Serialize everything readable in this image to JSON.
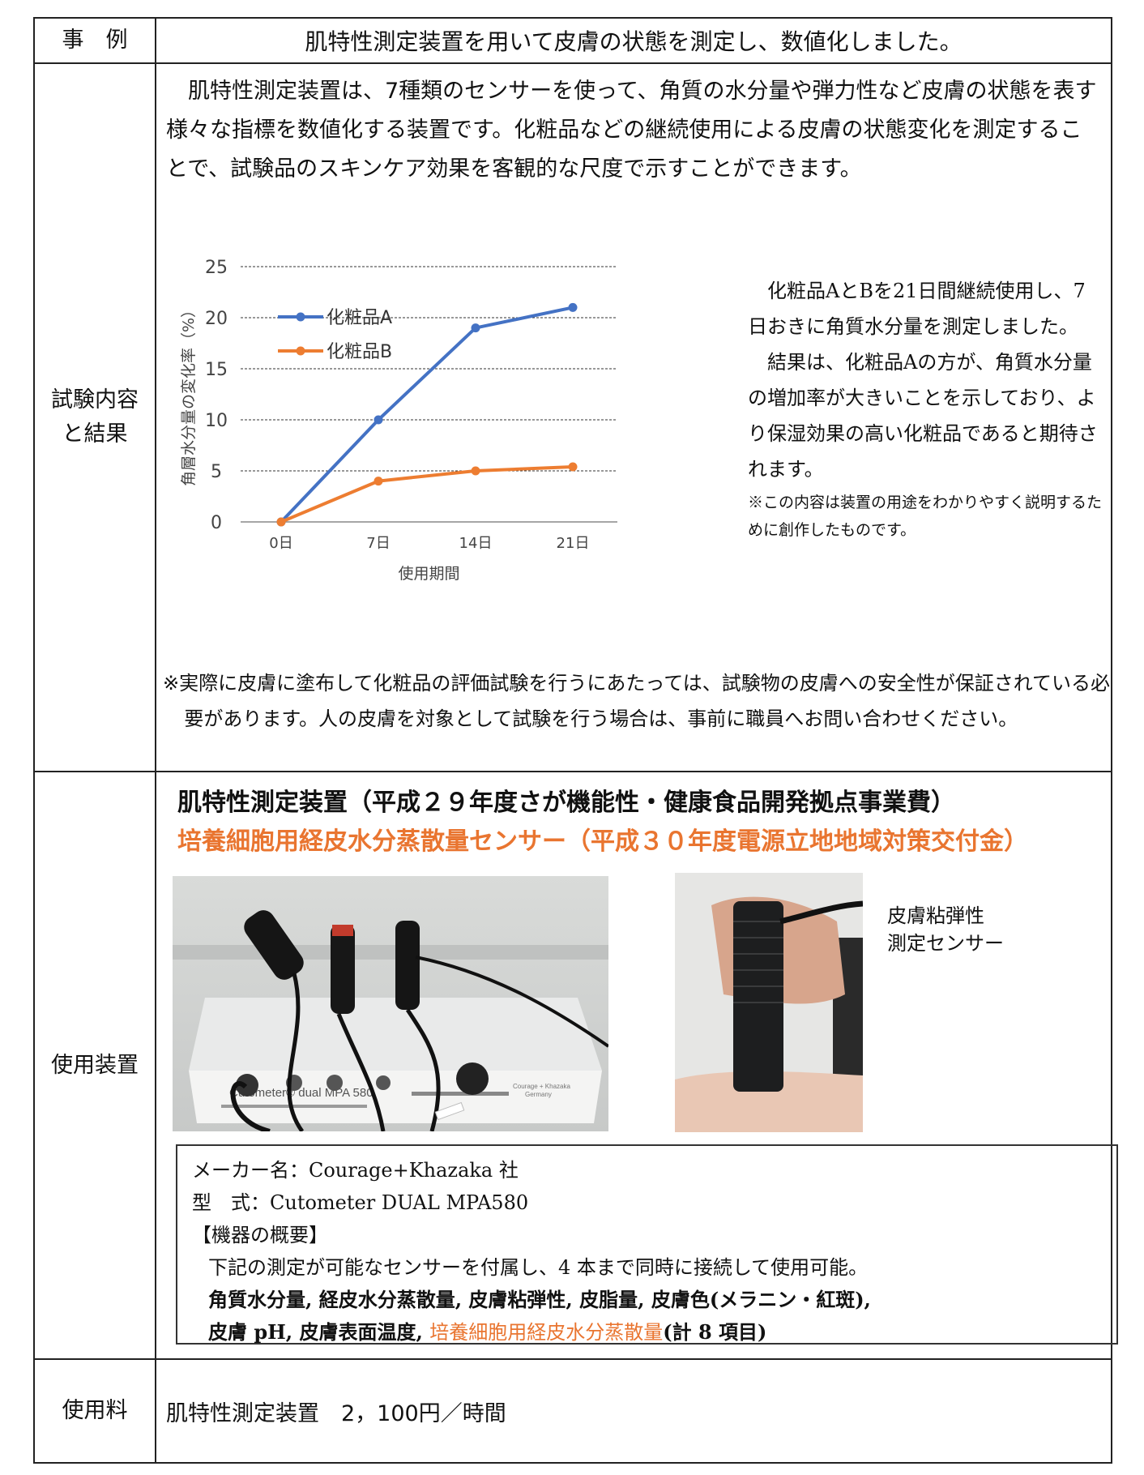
{
  "header": {
    "label": "事　例",
    "text": "肌特性測定装置を用いて皮膚の状態を測定し、数値化しました。"
  },
  "test": {
    "label": "試験内容と結果",
    "intro": "肌特性測定装置は、7種類のセンサーを使って、角質の水分量や弾力性など皮膚の状態を表す様々な指標を数値化する装置です。化粧品などの継続使用による皮膚の状態変化を測定することで、試験品のスキンケア効果を客観的な尺度で示すことができます。",
    "desc1": "化粧品AとBを21日間継続使用し、7日おきに角質水分量を測定しました。",
    "desc2": "結果は、化粧品Aの方が、角質水分量の増加率が大きいことを示しており、より保湿効果の高い化粧品であると期待されます。",
    "note": "※この内容は装置の用途をわかりやすく説明するために創作したものです。",
    "caution": "※実際に皮膚に塗布して化粧品の評価試験を行うにあたっては、試験物の皮膚への安全性が保証されている必要があります。人の皮膚を対象として試験を行う場合は、事前に職員へお問い合わせください。"
  },
  "chart_data": {
    "type": "line",
    "categories": [
      "0日",
      "7日",
      "14日",
      "21日"
    ],
    "series": [
      {
        "name": "化粧品A",
        "values": [
          0,
          10,
          19,
          21
        ],
        "color": "#4472c4"
      },
      {
        "name": "化粧品B",
        "values": [
          0,
          4,
          5,
          5.4
        ],
        "color": "#ed7d31"
      }
    ],
    "title": "",
    "xlabel": "使用期間",
    "ylabel": "角層水分量の変化率（%）",
    "ylim": [
      0,
      25
    ],
    "yticks": [
      "0",
      "5",
      "10",
      "15",
      "20",
      "25"
    ],
    "grid": true,
    "legend_position": "top-left"
  },
  "equipment": {
    "label": "使用装置",
    "title1": "肌特性測定装置（平成２９年度さが機能性・健康食品開発拠点事業費）",
    "title2": "培養細胞用経皮水分蒸散量センサー（平成３０年度電源立地地域対策交付金）",
    "device_text": "Cutometer® dual MPA 580",
    "device_brand": "Courage + Khazaka",
    "device_country": "Germany",
    "caption_line1": "皮膚粘弾性",
    "caption_line2": "測定センサー",
    "maker": "メーカー名：Courage+Khazaka 社",
    "model": "型　式：Cutometer DUAL MPA580",
    "overview_heading": "【機器の概要】",
    "overview_text": "下記の測定が可能なセンサーを付属し、4 本まで同時に接続して使用可能。",
    "items_line1": "角質水分量, 経皮水分蒸散量, 皮膚粘弾性, 皮脂量, 皮膚色(メラニン・紅斑),",
    "items_line2_a": "皮膚 pH, 皮膚表面温度, ",
    "items_line2_b": "培養細胞用経皮水分蒸散量",
    "items_line2_c": "(計 8 項目)"
  },
  "fee": {
    "label": "使用料",
    "text": "肌特性測定装置　2，100円／時間"
  },
  "colors": {
    "accent_orange": "#e97530",
    "series_blue": "#4472c4",
    "series_orange": "#ed7d31"
  }
}
